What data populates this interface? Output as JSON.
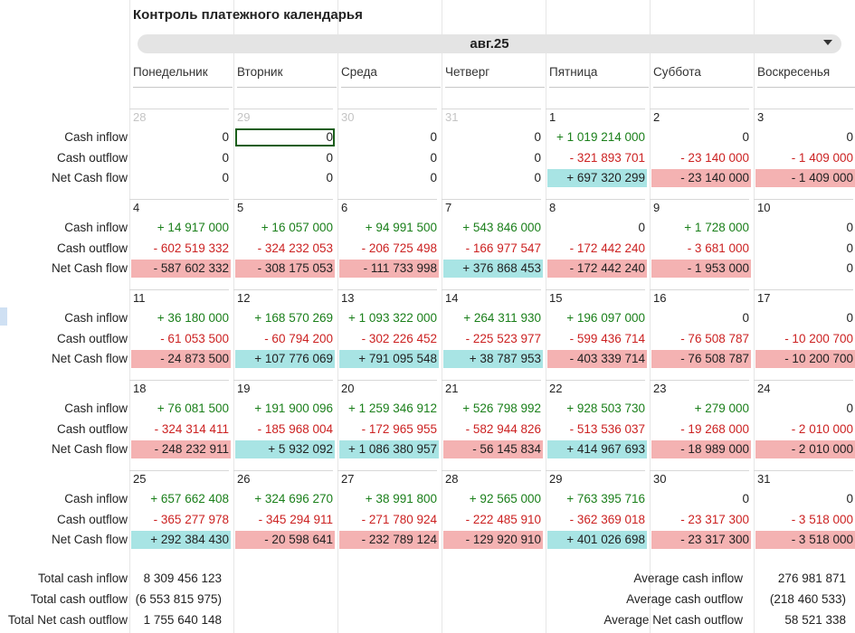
{
  "title": "Контроль платежного календарья",
  "month": "авг.25",
  "weekdays": [
    "Понедельник",
    "Вторник",
    "Среда",
    "Четверг",
    "Пятница",
    "Суббота",
    "Воскресенья"
  ],
  "row_labels": {
    "inflow": "Cash inflow",
    "outflow": "Cash outflow",
    "net": "Net Cash flow"
  },
  "weeks": [
    {
      "days": [
        {
          "num": "28",
          "muted": true,
          "in": "0",
          "out": "0",
          "net": "0"
        },
        {
          "num": "29",
          "muted": true,
          "in": "0",
          "out": "0",
          "net": "0"
        },
        {
          "num": "30",
          "muted": true,
          "in": "0",
          "out": "0",
          "net": "0"
        },
        {
          "num": "31",
          "muted": true,
          "in": "0",
          "out": "0",
          "net": "0"
        },
        {
          "num": "1",
          "in": "+ 1 019 214 000",
          "out": "- 321 893 701",
          "net": "+ 697 320 299"
        },
        {
          "num": "2",
          "in": "0",
          "out": "- 23 140 000",
          "net": "-  23 140 000"
        },
        {
          "num": "3",
          "in": "0",
          "out": "- 1 409 000",
          "net": "-  1 409 000"
        }
      ]
    },
    {
      "days": [
        {
          "num": "4",
          "in": "+ 14 917 000",
          "out": "- 602 519 332",
          "net": "-  587 602 332"
        },
        {
          "num": "5",
          "in": "+ 16 057 000",
          "out": "- 324 232 053",
          "net": "-  308 175 053"
        },
        {
          "num": "6",
          "in": "+ 94 991 500",
          "out": "- 206 725 498",
          "net": "-  111 733 998"
        },
        {
          "num": "7",
          "in": "+ 543 846 000",
          "out": "- 166 977 547",
          "net": "+ 376 868 453"
        },
        {
          "num": "8",
          "in": "0",
          "out": "- 172 442 240",
          "net": "-  172 442 240"
        },
        {
          "num": "9",
          "in": "+ 1 728 000",
          "out": "- 3 681 000",
          "net": "-  1 953 000"
        },
        {
          "num": "10",
          "in": "0",
          "out": "0",
          "net": "0"
        }
      ]
    },
    {
      "days": [
        {
          "num": "11",
          "in": "+ 36 180 000",
          "out": "- 61 053 500",
          "net": "-  24 873 500"
        },
        {
          "num": "12",
          "in": "+ 168 570 269",
          "out": "- 60 794 200",
          "net": "+ 107 776 069"
        },
        {
          "num": "13",
          "in": "+ 1 093 322 000",
          "out": "- 302 226 452",
          "net": "+ 791 095 548"
        },
        {
          "num": "14",
          "in": "+ 264 311 930",
          "out": "- 225 523 977",
          "net": "+ 38 787 953"
        },
        {
          "num": "15",
          "in": "+ 196 097 000",
          "out": "- 599 436 714",
          "net": "-  403 339 714"
        },
        {
          "num": "16",
          "in": "0",
          "out": "- 76 508 787",
          "net": "-  76 508 787"
        },
        {
          "num": "17",
          "in": "0",
          "out": "- 10 200 700",
          "net": "-  10 200 700"
        }
      ]
    },
    {
      "days": [
        {
          "num": "18",
          "in": "+ 76 081 500",
          "out": "- 324 314 411",
          "net": "-  248 232 911"
        },
        {
          "num": "19",
          "in": "+ 191 900 096",
          "out": "- 185 968 004",
          "net": "+ 5 932 092"
        },
        {
          "num": "20",
          "in": "+ 1 259 346 912",
          "out": "- 172 965 955",
          "net": "+ 1 086 380 957"
        },
        {
          "num": "21",
          "in": "+ 526 798 992",
          "out": "- 582 944 826",
          "net": "-  56 145 834"
        },
        {
          "num": "22",
          "in": "+ 928 503 730",
          "out": "- 513 536 037",
          "net": "+ 414 967 693"
        },
        {
          "num": "23",
          "in": "+ 279 000",
          "out": "- 19 268 000",
          "net": "-  18 989 000"
        },
        {
          "num": "24",
          "in": "0",
          "out": "- 2 010 000",
          "net": "-  2 010 000"
        }
      ]
    },
    {
      "days": [
        {
          "num": "25",
          "in": "+ 657 662 408",
          "out": "- 365 277 978",
          "net": "+ 292 384 430"
        },
        {
          "num": "26",
          "in": "+ 324 696 270",
          "out": "- 345 294 911",
          "net": "-  20 598 641"
        },
        {
          "num": "27",
          "in": "+ 38 991 800",
          "out": "- 271 780 924",
          "net": "-  232 789 124"
        },
        {
          "num": "28",
          "in": "+ 92 565 000",
          "out": "- 222 485 910",
          "net": "-  129 920 910"
        },
        {
          "num": "29",
          "in": "+ 763 395 716",
          "out": "- 362 369 018",
          "net": "+ 401 026 698"
        },
        {
          "num": "30",
          "in": "0",
          "out": "- 23 317 300",
          "net": "-  23 317 300"
        },
        {
          "num": "31",
          "in": "0",
          "out": "- 3 518 000",
          "net": "-  3 518 000"
        }
      ]
    }
  ],
  "totals": {
    "total_inflow_label": "Total cash inflow",
    "total_inflow": "8 309 456 123",
    "total_outflow_label": "Total cash outflow",
    "total_outflow": "(6 553 815 975)",
    "total_net_label": "Total Net cash outflow",
    "total_net": "1 755 640 148",
    "avg_inflow_label": "Average cash inflow",
    "avg_inflow": "276 981 871",
    "avg_outflow_label": "Average cash outflow",
    "avg_outflow": "(218 460 533)",
    "avg_net_label": "Average Net cash outflow",
    "avg_net": "58 521 338"
  },
  "colors": {
    "positive_text": "#1a7f1a",
    "negative_text": "#cc2222",
    "positive_fill": "#a8e4e4",
    "negative_fill": "#f4b2b2"
  }
}
